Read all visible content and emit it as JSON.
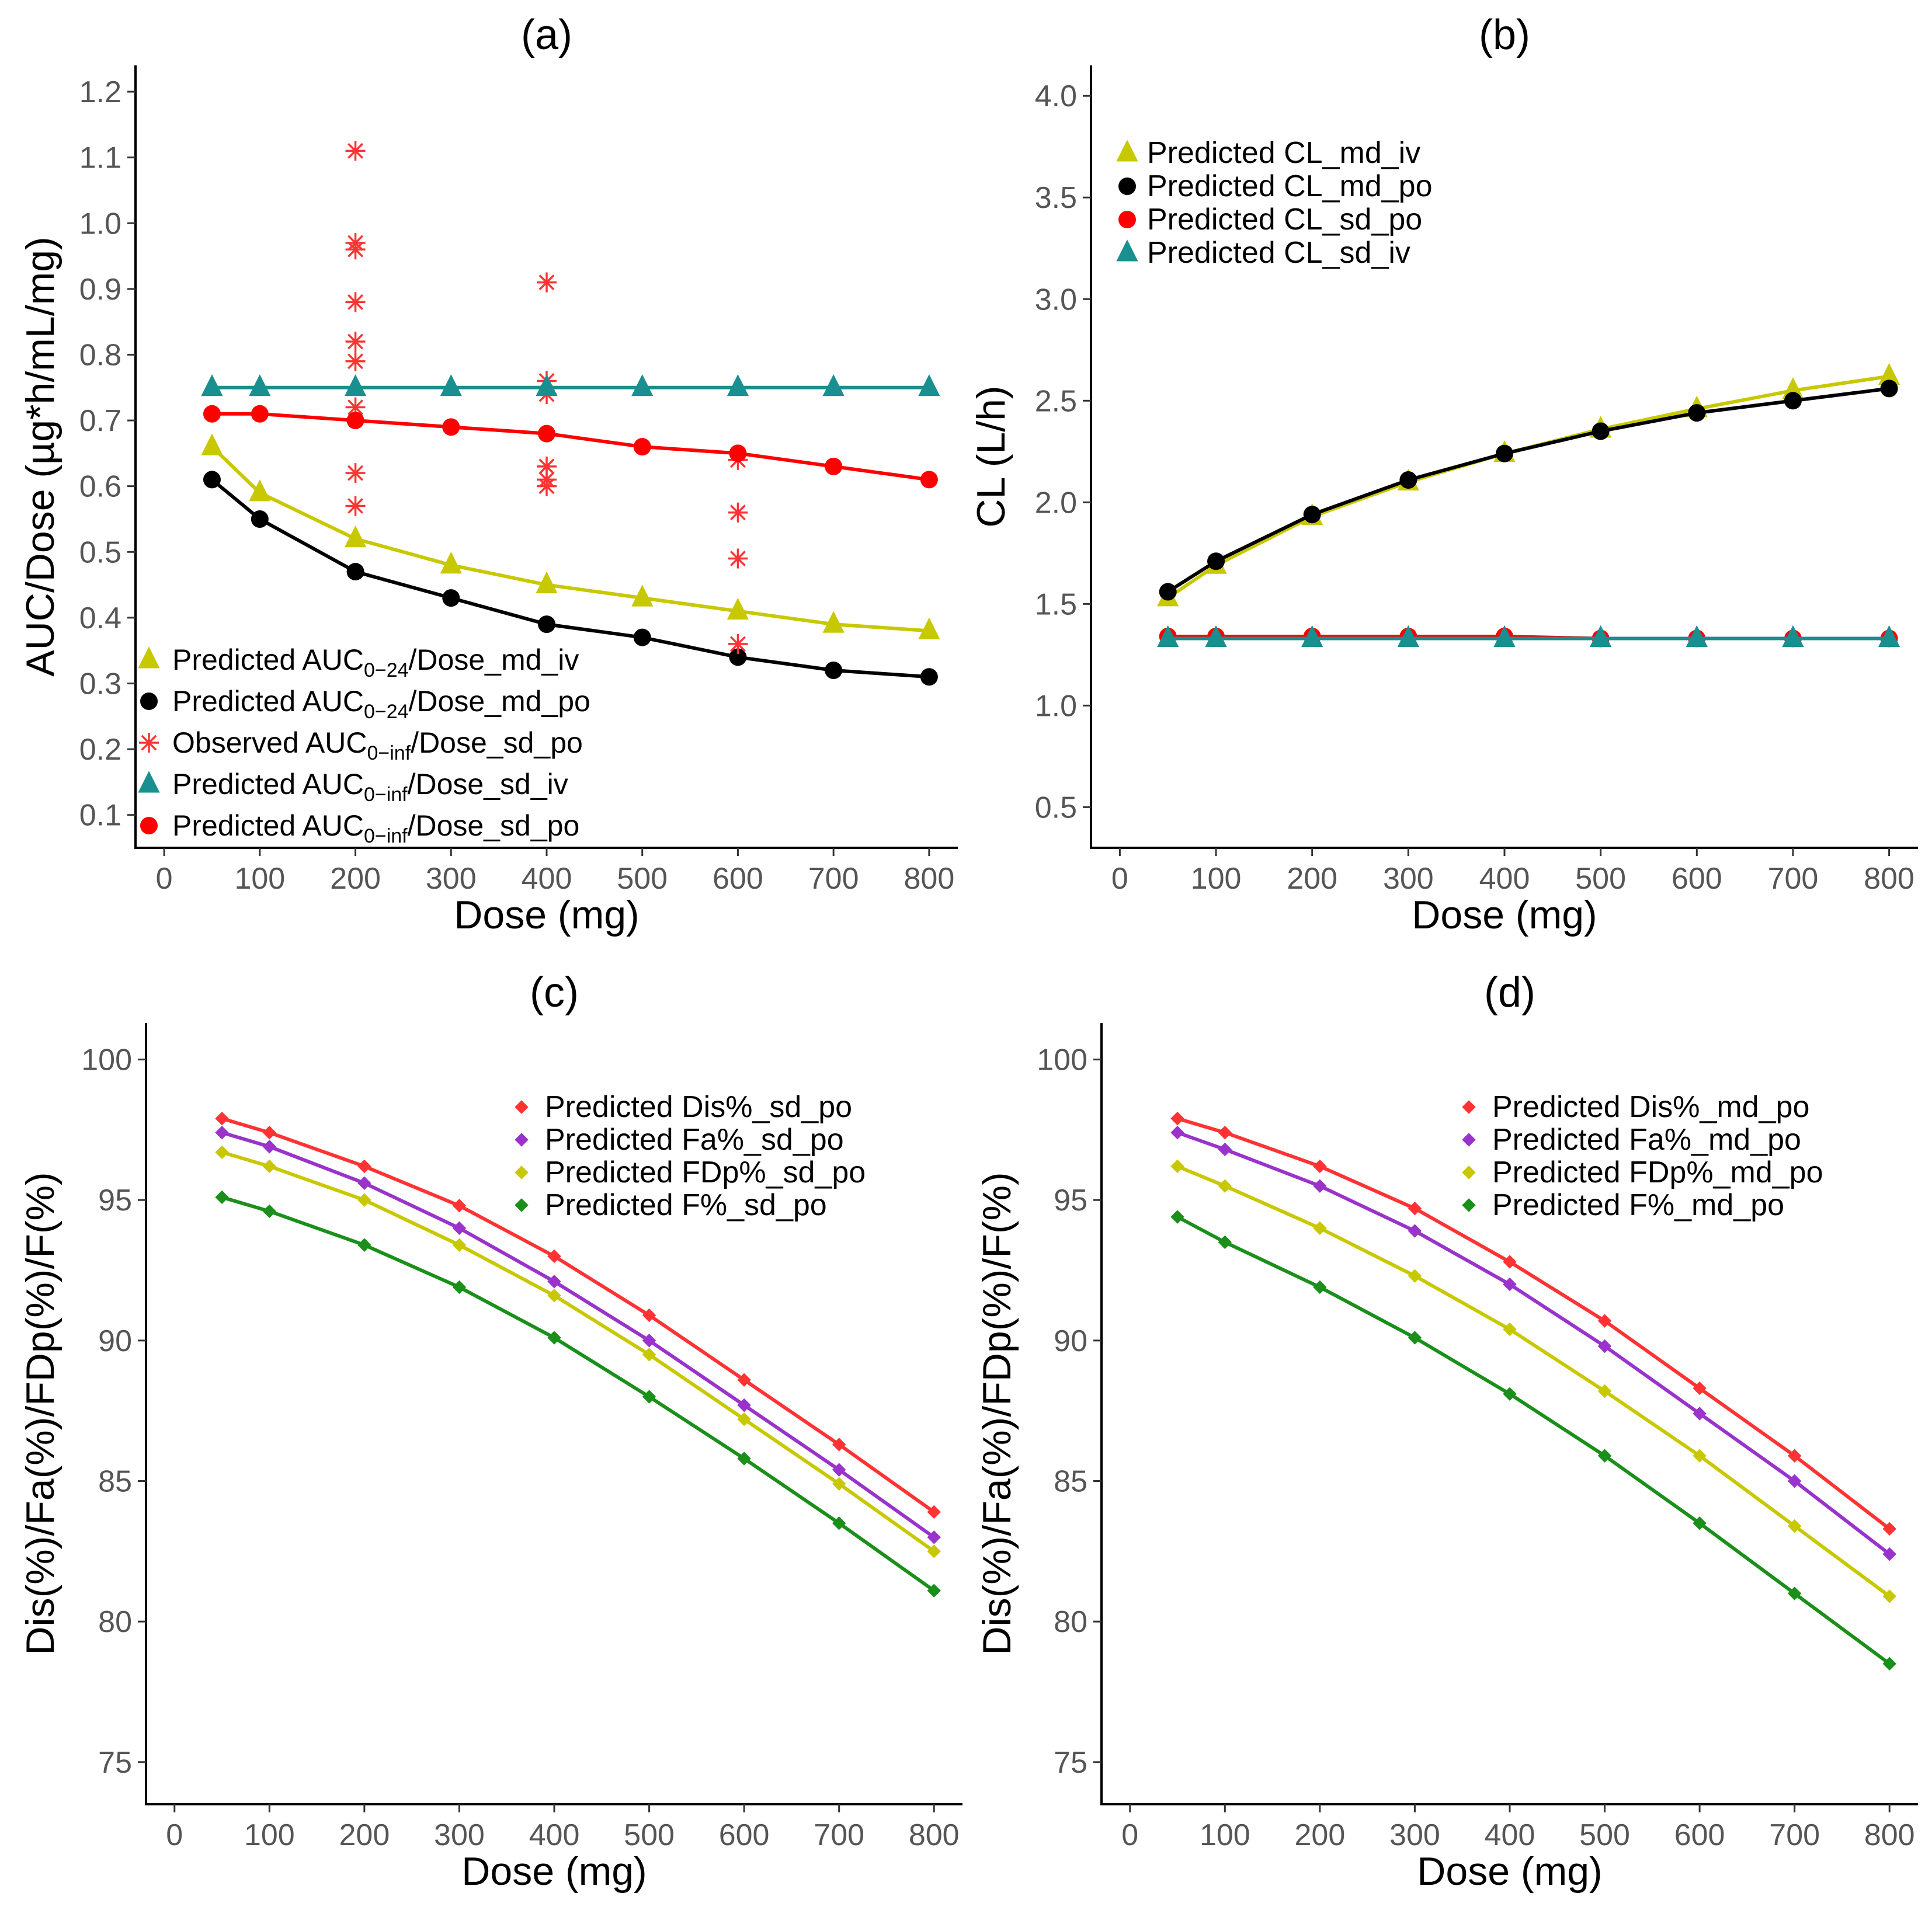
{
  "chart_data": [
    {
      "panel": "(a)",
      "type": "line",
      "title": "(a)",
      "xlabel": "Dose (mg)",
      "ylabel": "AUC/Dose (µg*h/mL/mg)",
      "xlim": [
        -30,
        830
      ],
      "ylim": [
        0.05,
        1.24
      ],
      "xticks": [
        0,
        100,
        200,
        300,
        400,
        500,
        600,
        700,
        800
      ],
      "yticks": [
        0.1,
        0.2,
        0.3,
        0.4,
        0.5,
        0.6,
        0.7,
        0.8,
        0.9,
        1.0,
        1.1,
        1.2
      ],
      "ytick_labels": [
        "0.1",
        "0.2",
        "0.3",
        "0.4",
        "0.5",
        "0.6",
        "0.7",
        "0.8",
        "0.9",
        "1.0",
        "1.1",
        "1.2"
      ],
      "legend_position": "bottom-left",
      "series": [
        {
          "name_main": "Predicted AUC",
          "name_sub": "0−24",
          "name_tail": "/Dose_md_iv",
          "color": "#c8c800",
          "marker": "triangle",
          "line": true,
          "x": [
            50,
            100,
            200,
            300,
            400,
            500,
            600,
            700,
            800
          ],
          "values": [
            0.66,
            0.59,
            0.52,
            0.48,
            0.45,
            0.43,
            0.41,
            0.39,
            0.38
          ]
        },
        {
          "name_main": "Predicted AUC",
          "name_sub": "0−24",
          "name_tail": "/Dose_md_po",
          "color": "#000000",
          "marker": "circle",
          "line": true,
          "x": [
            50,
            100,
            200,
            300,
            400,
            500,
            600,
            700,
            800
          ],
          "values": [
            0.61,
            0.55,
            0.47,
            0.43,
            0.39,
            0.37,
            0.34,
            0.32,
            0.31
          ]
        },
        {
          "name_main": "Observed AUC",
          "name_sub": "0−inf",
          "name_tail": "/Dose_sd_po",
          "color": "#ff3333",
          "marker": "asterisk",
          "line": false,
          "x": [
            200,
            200,
            200,
            200,
            200,
            200,
            200,
            200,
            200,
            400,
            400,
            400,
            400,
            400,
            400,
            600,
            600,
            600,
            600
          ],
          "values": [
            1.11,
            0.97,
            0.96,
            0.88,
            0.82,
            0.79,
            0.72,
            0.62,
            0.57,
            0.91,
            0.76,
            0.74,
            0.63,
            0.61,
            0.6,
            0.64,
            0.56,
            0.49,
            0.36
          ]
        },
        {
          "name_main": "Predicted AUC",
          "name_sub": "0−inf",
          "name_tail": "/Dose_sd_iv",
          "color": "#1a8f8f",
          "marker": "triangle",
          "line": true,
          "x": [
            50,
            100,
            200,
            300,
            400,
            500,
            600,
            700,
            800
          ],
          "values": [
            0.75,
            0.75,
            0.75,
            0.75,
            0.75,
            0.75,
            0.75,
            0.75,
            0.75
          ]
        },
        {
          "name_main": "Predicted AUC",
          "name_sub": "0−inf",
          "name_tail": "/Dose_sd_po",
          "color": "#ff0000",
          "marker": "circle",
          "line": true,
          "x": [
            50,
            100,
            200,
            300,
            400,
            500,
            600,
            700,
            800
          ],
          "values": [
            0.71,
            0.71,
            0.7,
            0.69,
            0.68,
            0.66,
            0.65,
            0.63,
            0.61
          ]
        }
      ]
    },
    {
      "panel": "(b)",
      "type": "line",
      "title": "(b)",
      "xlabel": "Dose (mg)",
      "ylabel": "CL (L/h)",
      "xlim": [
        -30,
        830
      ],
      "ylim": [
        0.3,
        4.15
      ],
      "xticks": [
        0,
        100,
        200,
        300,
        400,
        500,
        600,
        700,
        800
      ],
      "yticks": [
        0.5,
        1.0,
        1.5,
        2.0,
        2.5,
        3.0,
        3.5,
        4.0
      ],
      "ytick_labels": [
        "0.5",
        "1.0",
        "1.5",
        "2.0",
        "2.5",
        "3.0",
        "3.5",
        "4.0"
      ],
      "legend_position": "top-left",
      "series": [
        {
          "name_main": "Predicted CL_md_iv",
          "color": "#c8c800",
          "marker": "triangle",
          "line": true,
          "x": [
            50,
            100,
            200,
            300,
            400,
            500,
            600,
            700,
            800
          ],
          "values": [
            1.53,
            1.69,
            1.93,
            2.1,
            2.24,
            2.36,
            2.46,
            2.55,
            2.62
          ]
        },
        {
          "name_main": "Predicted CL_md_po",
          "color": "#000000",
          "marker": "circle",
          "line": true,
          "x": [
            50,
            100,
            200,
            300,
            400,
            500,
            600,
            700,
            800
          ],
          "values": [
            1.56,
            1.71,
            1.94,
            2.11,
            2.24,
            2.35,
            2.44,
            2.5,
            2.56
          ]
        },
        {
          "name_main": "Predicted CL_sd_po",
          "color": "#ff0000",
          "marker": "circle",
          "line": true,
          "x": [
            50,
            100,
            200,
            300,
            400,
            500,
            600,
            700,
            800
          ],
          "values": [
            1.34,
            1.34,
            1.34,
            1.34,
            1.34,
            1.33,
            1.33,
            1.33,
            1.33
          ]
        },
        {
          "name_main": "Predicted CL_sd_iv",
          "color": "#1a8f8f",
          "marker": "triangle",
          "line": true,
          "x": [
            50,
            100,
            200,
            300,
            400,
            500,
            600,
            700,
            800
          ],
          "values": [
            1.33,
            1.33,
            1.33,
            1.33,
            1.33,
            1.33,
            1.33,
            1.33,
            1.33
          ]
        }
      ]
    },
    {
      "panel": "(c)",
      "type": "line",
      "title": "(c)",
      "xlabel": "Dose (mg)",
      "ylabel": "Dis(%)/Fa(%)/FDp(%)/F(%)",
      "xlim": [
        -30,
        830
      ],
      "ylim": [
        73.5,
        101.3
      ],
      "xticks": [
        0,
        100,
        200,
        300,
        400,
        500,
        600,
        700,
        800
      ],
      "yticks": [
        75,
        80,
        85,
        90,
        95,
        100
      ],
      "ytick_labels": [
        "75",
        "80",
        "85",
        "90",
        "95",
        "100"
      ],
      "legend_position": "top-right",
      "series": [
        {
          "name_main": "Predicted Dis%_sd_po",
          "color": "#ff3333",
          "marker": "diamond",
          "line": true,
          "x": [
            50,
            100,
            200,
            300,
            400,
            500,
            600,
            700,
            800
          ],
          "values": [
            97.9,
            97.4,
            96.2,
            94.8,
            93.0,
            90.9,
            88.6,
            86.3,
            83.9
          ]
        },
        {
          "name_main": "Predicted Fa%_sd_po",
          "color": "#9933cc",
          "marker": "diamond",
          "line": true,
          "x": [
            50,
            100,
            200,
            300,
            400,
            500,
            600,
            700,
            800
          ],
          "values": [
            97.4,
            96.9,
            95.6,
            94.0,
            92.1,
            90.0,
            87.7,
            85.4,
            83.0
          ]
        },
        {
          "name_main": "Predicted FDp%_sd_po",
          "color": "#c8c800",
          "marker": "diamond",
          "line": true,
          "x": [
            50,
            100,
            200,
            300,
            400,
            500,
            600,
            700,
            800
          ],
          "values": [
            96.7,
            96.2,
            95.0,
            93.4,
            91.6,
            89.5,
            87.2,
            84.9,
            82.5
          ]
        },
        {
          "name_main": "Predicted F%_sd_po",
          "color": "#1a8f1a",
          "marker": "diamond",
          "line": true,
          "x": [
            50,
            100,
            200,
            300,
            400,
            500,
            600,
            700,
            800
          ],
          "values": [
            95.1,
            94.6,
            93.4,
            91.9,
            90.1,
            88.0,
            85.8,
            83.5,
            81.1
          ]
        }
      ]
    },
    {
      "panel": "(d)",
      "type": "line",
      "title": "(d)",
      "xlabel": "Dose (mg)",
      "ylabel": "Dis(%)/Fa(%)/FDp(%)/F(%)",
      "xlim": [
        -30,
        830
      ],
      "ylim": [
        73.5,
        101.3
      ],
      "xticks": [
        0,
        100,
        200,
        300,
        400,
        500,
        600,
        700,
        800
      ],
      "yticks": [
        75,
        80,
        85,
        90,
        95,
        100
      ],
      "ytick_labels": [
        "75",
        "80",
        "85",
        "90",
        "95",
        "100"
      ],
      "legend_position": "top-right",
      "series": [
        {
          "name_main": "Predicted Dis%_md_po",
          "color": "#ff3333",
          "marker": "diamond",
          "line": true,
          "x": [
            50,
            100,
            200,
            300,
            400,
            500,
            600,
            700,
            800
          ],
          "values": [
            97.9,
            97.4,
            96.2,
            94.7,
            92.8,
            90.7,
            88.3,
            85.9,
            83.3
          ]
        },
        {
          "name_main": "Predicted Fa%_md_po",
          "color": "#9933cc",
          "marker": "diamond",
          "line": true,
          "x": [
            50,
            100,
            200,
            300,
            400,
            500,
            600,
            700,
            800
          ],
          "values": [
            97.4,
            96.8,
            95.5,
            93.9,
            92.0,
            89.8,
            87.4,
            85.0,
            82.4
          ]
        },
        {
          "name_main": "Predicted FDp%_md_po",
          "color": "#c8c800",
          "marker": "diamond",
          "line": true,
          "x": [
            50,
            100,
            200,
            300,
            400,
            500,
            600,
            700,
            800
          ],
          "values": [
            96.2,
            95.5,
            94.0,
            92.3,
            90.4,
            88.2,
            85.9,
            83.4,
            80.9
          ]
        },
        {
          "name_main": "Predicted F%_md_po",
          "color": "#1a8f1a",
          "marker": "diamond",
          "line": true,
          "x": [
            50,
            100,
            200,
            300,
            400,
            500,
            600,
            700,
            800
          ],
          "values": [
            94.4,
            93.5,
            91.9,
            90.1,
            88.1,
            85.9,
            83.5,
            81.0,
            78.5
          ]
        }
      ]
    }
  ]
}
